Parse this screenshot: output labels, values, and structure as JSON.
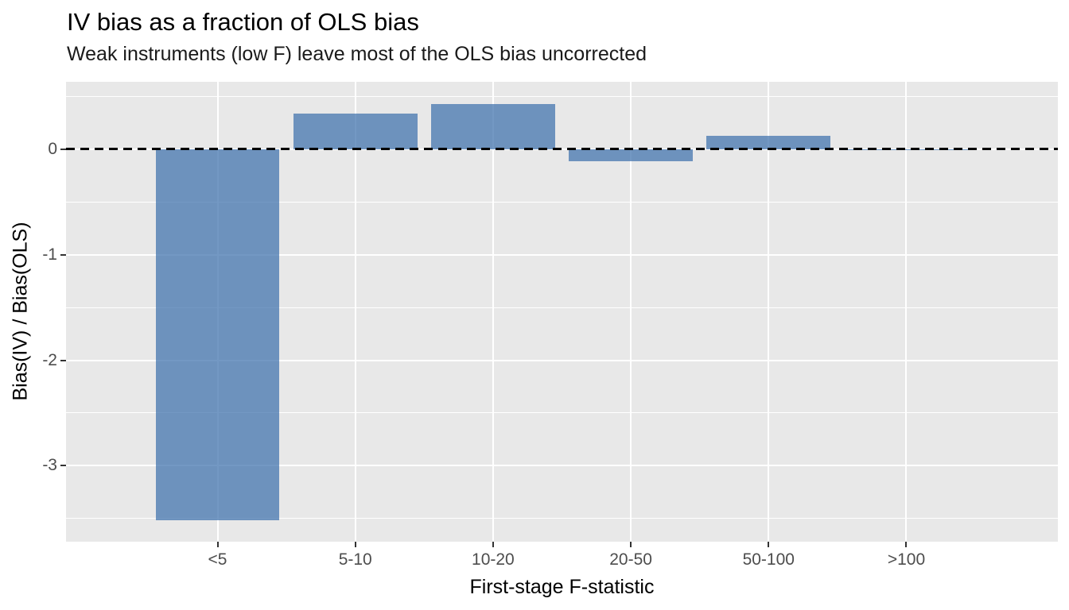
{
  "chart_data": {
    "type": "bar",
    "title": "IV bias as a fraction of OLS bias",
    "subtitle": "Weak instruments (low F) leave most of the OLS bias uncorrected",
    "xlabel": "First-stage F-statistic",
    "ylabel": "Bias(IV) / Bias(OLS)",
    "categories": [
      "<5",
      "5-10",
      "10-20",
      "20-50",
      "50-100",
      ">100"
    ],
    "values": [
      -3.52,
      0.34,
      0.43,
      -0.11,
      0.13,
      -0.01
    ],
    "ylim": [
      -3.72,
      0.64
    ],
    "yticks": [
      0,
      -1,
      -2,
      -3
    ],
    "ytick_labels": [
      "0",
      "-1",
      "-2",
      "-3"
    ],
    "minor_grid_step": 0.5,
    "reference_line_y": 0,
    "reference_line_style": "dashed",
    "grid": true,
    "legend_position": "none",
    "colors": {
      "bar_fill": "rgba(68,117,175,0.75)",
      "bar_fill_flat": "#6D92BD",
      "panel_background": "#E8E8E8",
      "gridline": "#FFFFFF",
      "axis_text": "#4D4D4D",
      "title_text": "#000000",
      "tick_mark": "#333333",
      "reference_line": "#000000",
      "figure_background": "#FFFFFF"
    }
  }
}
